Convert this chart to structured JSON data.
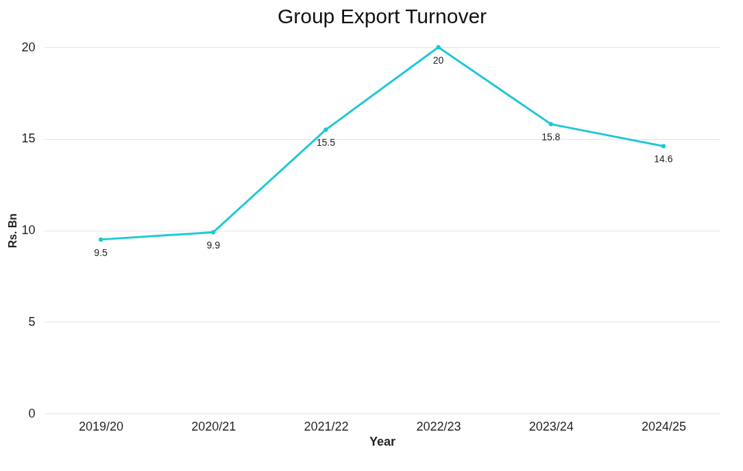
{
  "chart_data": {
    "type": "line",
    "title": "Group Export Turnover",
    "xlabel": "Year",
    "ylabel": "Rs. Bn",
    "categories": [
      "2019/20",
      "2020/21",
      "2021/22",
      "2022/23",
      "2023/24",
      "2024/25"
    ],
    "series": [
      {
        "color": "#1ec8d6",
        "values": [
          9.5,
          9.9,
          15.5,
          20,
          15.8,
          14.6
        ]
      }
    ],
    "ylim": [
      0,
      20
    ],
    "yticks": [
      0,
      5,
      10,
      15,
      20
    ],
    "grid": "y",
    "marker": "circle",
    "line_style": "solid",
    "data_labels": true
  }
}
